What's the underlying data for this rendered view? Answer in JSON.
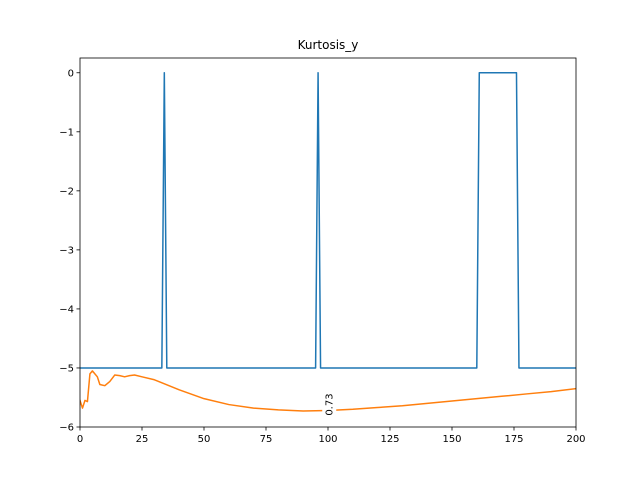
{
  "chart_data": {
    "type": "line",
    "title": "Kurtosis_y",
    "xlim": [
      0,
      200
    ],
    "ylim": [
      -6,
      0.25
    ],
    "xticks": [
      0,
      25,
      50,
      75,
      100,
      125,
      150,
      175,
      200
    ],
    "yticks": [
      0,
      -1,
      -2,
      -3,
      -4,
      -5,
      -6
    ],
    "xtick_labels": [
      "0",
      "25",
      "50",
      "75",
      "100",
      "125",
      "150",
      "175",
      "200"
    ],
    "ytick_labels": [
      "0",
      "−1",
      "−2",
      "−3",
      "−4",
      "−5",
      "−6"
    ],
    "grid": false,
    "series": [
      {
        "color": "#1f77b4",
        "x": [
          0,
          33,
          34,
          35,
          95,
          96,
          97,
          160,
          161,
          176,
          177,
          200
        ],
        "y": [
          -5,
          -5,
          0,
          -5,
          -5,
          0,
          -5,
          -5,
          0,
          0,
          -5,
          -5
        ]
      },
      {
        "color": "#ff7f0e",
        "x": [
          0,
          1,
          2,
          3,
          4,
          5,
          6,
          7,
          8,
          10,
          12,
          14,
          16,
          18,
          20,
          22,
          25,
          30,
          40,
          50,
          60,
          70,
          80,
          90,
          100,
          110,
          120,
          130,
          140,
          150,
          160,
          170,
          180,
          190,
          200
        ],
        "y": [
          -5.55,
          -5.68,
          -5.55,
          -5.57,
          -5.1,
          -5.05,
          -5.1,
          -5.15,
          -5.28,
          -5.3,
          -5.23,
          -5.12,
          -5.13,
          -5.15,
          -5.13,
          -5.12,
          -5.15,
          -5.2,
          -5.37,
          -5.52,
          -5.62,
          -5.68,
          -5.71,
          -5.73,
          -5.72,
          -5.7,
          -5.67,
          -5.64,
          -5.6,
          -5.56,
          -5.52,
          -5.48,
          -5.44,
          -5.4,
          -5.35
        ]
      }
    ],
    "annotations": [
      {
        "text": "0.73",
        "x": 100.5,
        "y": -5.62,
        "rotation": 90
      }
    ]
  }
}
